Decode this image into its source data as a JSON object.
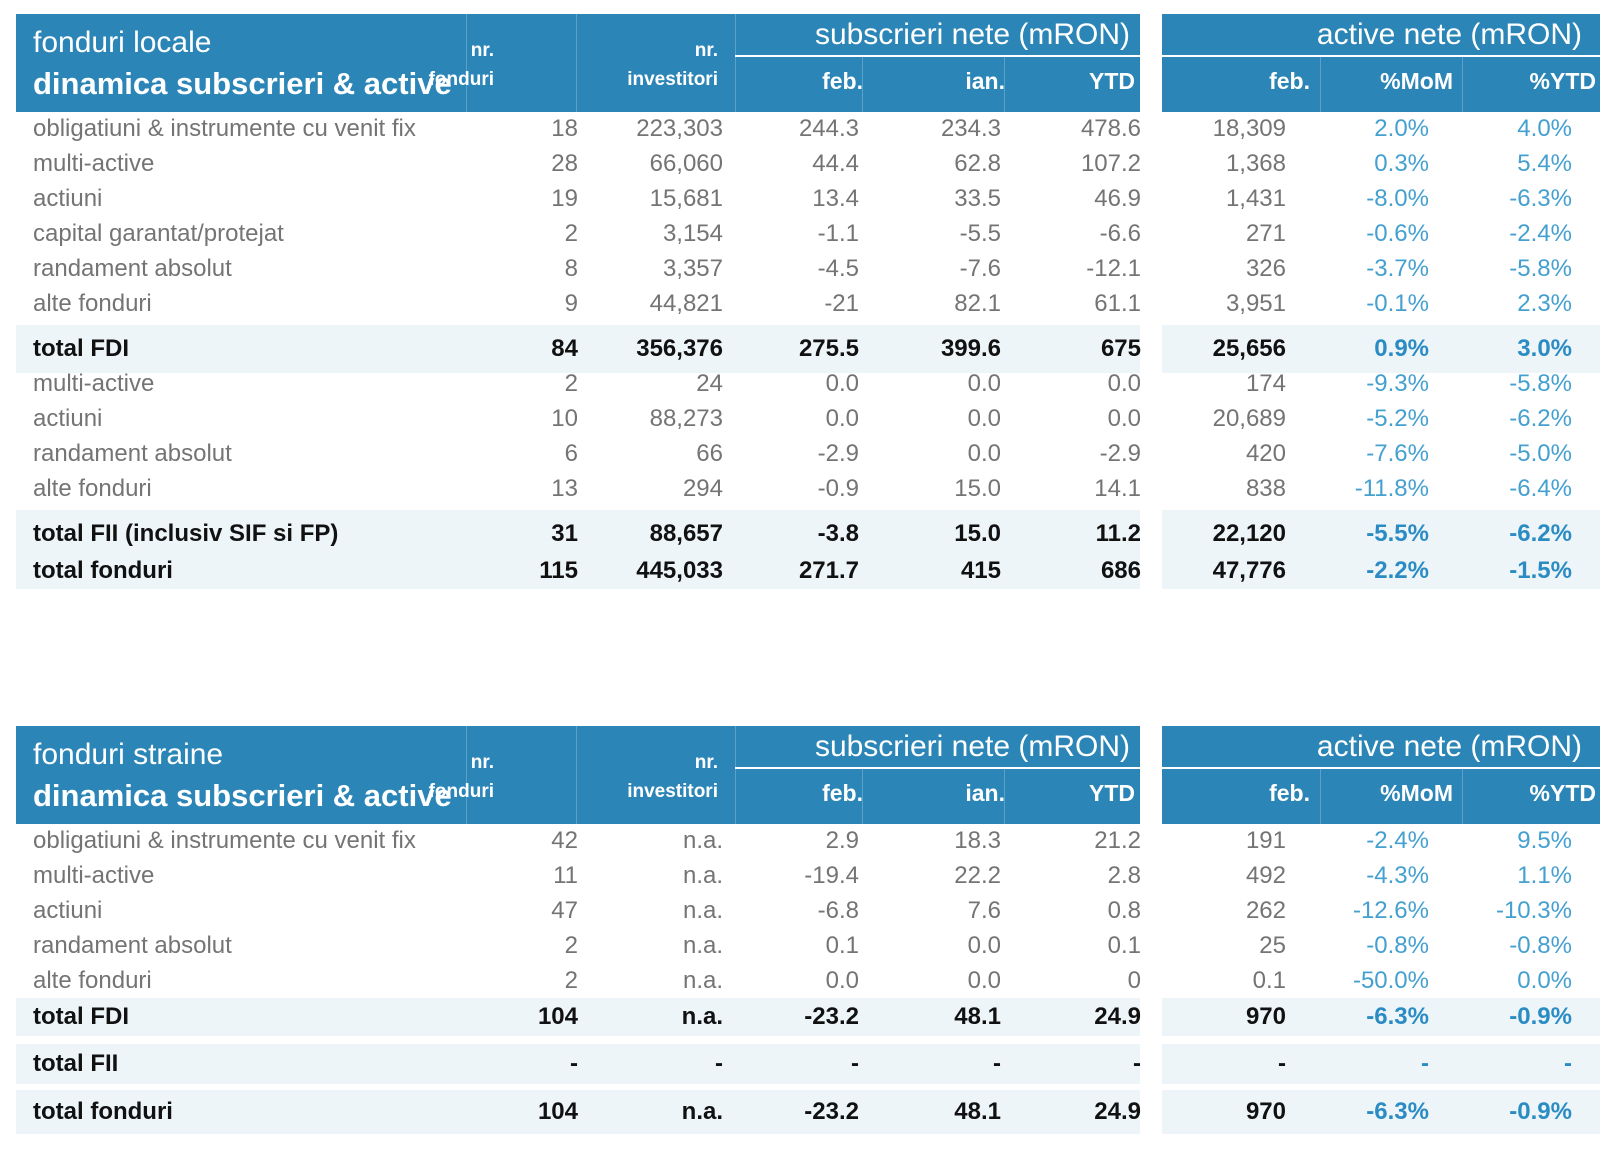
{
  "local": {
    "title1": "fonduri locale",
    "title2": "dinamica subscrieri & active",
    "col_nr_fonduri": [
      "nr.",
      "fonduri"
    ],
    "col_nr_investitori": [
      "nr.",
      "investitori"
    ],
    "group_subscrieri": "subscrieri nete (mRON)",
    "group_active": "active nete (mRON)",
    "col_sub": [
      "feb.",
      "ian.",
      "YTD"
    ],
    "col_act": [
      "feb.",
      "%MoM",
      "%YTD"
    ],
    "rows": [
      {
        "label": "obligatiuni & instrumente cu venit fix",
        "nf": "18",
        "ni": "223,303",
        "feb": "244.3",
        "ian": "234.3",
        "ytd": "478.6",
        "afeb": "18,309",
        "mom": "2.0%",
        "pytd": "4.0%"
      },
      {
        "label": "multi-active",
        "nf": "28",
        "ni": "66,060",
        "feb": "44.4",
        "ian": "62.8",
        "ytd": "107.2",
        "afeb": "1,368",
        "mom": "0.3%",
        "pytd": "5.4%"
      },
      {
        "label": "actiuni",
        "nf": "19",
        "ni": "15,681",
        "feb": "13.4",
        "ian": "33.5",
        "ytd": "46.9",
        "afeb": "1,431",
        "mom": "-8.0%",
        "pytd": "-6.3%"
      },
      {
        "label": "capital garantat/protejat",
        "nf": "2",
        "ni": "3,154",
        "feb": "-1.1",
        "ian": "-5.5",
        "ytd": "-6.6",
        "afeb": "271",
        "mom": "-0.6%",
        "pytd": "-2.4%"
      },
      {
        "label": "randament absolut",
        "nf": "8",
        "ni": "3,357",
        "feb": "-4.5",
        "ian": "-7.6",
        "ytd": "-12.1",
        "afeb": "326",
        "mom": "-3.7%",
        "pytd": "-5.8%"
      },
      {
        "label": "alte fonduri",
        "nf": "9",
        "ni": "44,821",
        "feb": "-21",
        "ian": "82.1",
        "ytd": "61.1",
        "afeb": "3,951",
        "mom": "-0.1%",
        "pytd": "2.3%"
      },
      {
        "label": "total FDI",
        "nf": "84",
        "ni": "356,376",
        "feb": "275.5",
        "ian": "399.6",
        "ytd": "675",
        "afeb": "25,656",
        "mom": "0.9%",
        "pytd": "3.0%",
        "total": true
      },
      {
        "label": "multi-active",
        "nf": "2",
        "ni": "24",
        "feb": "0.0",
        "ian": "0.0",
        "ytd": "0.0",
        "afeb": "174",
        "mom": "-9.3%",
        "pytd": "-5.8%"
      },
      {
        "label": "actiuni",
        "nf": "10",
        "ni": "88,273",
        "feb": "0.0",
        "ian": "0.0",
        "ytd": "0.0",
        "afeb": "20,689",
        "mom": "-5.2%",
        "pytd": "-6.2%"
      },
      {
        "label": "randament absolut",
        "nf": "6",
        "ni": "66",
        "feb": "-2.9",
        "ian": "0.0",
        "ytd": "-2.9",
        "afeb": "420",
        "mom": "-7.6%",
        "pytd": "-5.0%"
      },
      {
        "label": "alte fonduri",
        "nf": "13",
        "ni": "294",
        "feb": "-0.9",
        "ian": "15.0",
        "ytd": "14.1",
        "afeb": "838",
        "mom": "-11.8%",
        "pytd": "-6.4%"
      },
      {
        "label": "total FII (inclusiv SIF si FP)",
        "nf": "31",
        "ni": "88,657",
        "feb": "-3.8",
        "ian": "15.0",
        "ytd": "11.2",
        "afeb": "22,120",
        "mom": "-5.5%",
        "pytd": "-6.2%",
        "total": true
      },
      {
        "label": "total fonduri",
        "nf": "115",
        "ni": "445,033",
        "feb": "271.7",
        "ian": "415",
        "ytd": "686",
        "afeb": "47,776",
        "mom": "-2.2%",
        "pytd": "-1.5%",
        "total": true
      }
    ]
  },
  "foreign": {
    "title1": "fonduri straine",
    "title2": "dinamica subscrieri & active",
    "col_nr_fonduri": [
      "nr.",
      "fonduri"
    ],
    "col_nr_investitori": [
      "nr.",
      "investitori"
    ],
    "group_subscrieri": "subscrieri nete (mRON)",
    "group_active": "active nete (mRON)",
    "col_sub": [
      "feb.",
      "ian.",
      "YTD"
    ],
    "col_act": [
      "feb.",
      "%MoM",
      "%YTD"
    ],
    "rows": [
      {
        "label": "obligatiuni & instrumente cu venit fix",
        "nf": "42",
        "ni": "n.a.",
        "feb": "2.9",
        "ian": "18.3",
        "ytd": "21.2",
        "afeb": "191",
        "mom": "-2.4%",
        "pytd": "9.5%"
      },
      {
        "label": "multi-active",
        "nf": "11",
        "ni": "n.a.",
        "feb": "-19.4",
        "ian": "22.2",
        "ytd": "2.8",
        "afeb": "492",
        "mom": "-4.3%",
        "pytd": "1.1%"
      },
      {
        "label": "actiuni",
        "nf": "47",
        "ni": "n.a.",
        "feb": "-6.8",
        "ian": "7.6",
        "ytd": "0.8",
        "afeb": "262",
        "mom": "-12.6%",
        "pytd": "-10.3%"
      },
      {
        "label": "randament absolut",
        "nf": "2",
        "ni": "n.a.",
        "feb": "0.1",
        "ian": "0.0",
        "ytd": "0.1",
        "afeb": "25",
        "mom": "-0.8%",
        "pytd": "-0.8%"
      },
      {
        "label": "alte fonduri",
        "nf": "2",
        "ni": "n.a.",
        "feb": "0.0",
        "ian": "0.0",
        "ytd": "0",
        "afeb": "0.1",
        "mom": "-50.0%",
        "pytd": "0.0%"
      },
      {
        "label": "total FDI",
        "nf": "104",
        "ni": "n.a.",
        "feb": "-23.2",
        "ian": "48.1",
        "ytd": "24.9",
        "afeb": "970",
        "mom": "-6.3%",
        "pytd": "-0.9%",
        "total": true
      },
      {
        "label": "total FII",
        "nf": "-",
        "ni": "-",
        "feb": "-",
        "ian": "-",
        "ytd": "-",
        "afeb": "-",
        "mom": "-",
        "pytd": "-",
        "total": true
      },
      {
        "label": "total fonduri",
        "nf": "104",
        "ni": "n.a.",
        "feb": "-23.2",
        "ian": "48.1",
        "ytd": "24.9",
        "afeb": "970",
        "mom": "-6.3%",
        "pytd": "-0.9%",
        "total": true
      }
    ]
  },
  "colors": {
    "header_bg": "#2b86b7",
    "band": "#edf5f9",
    "pct_text": "#44a0d0",
    "body_text": "#747474"
  }
}
